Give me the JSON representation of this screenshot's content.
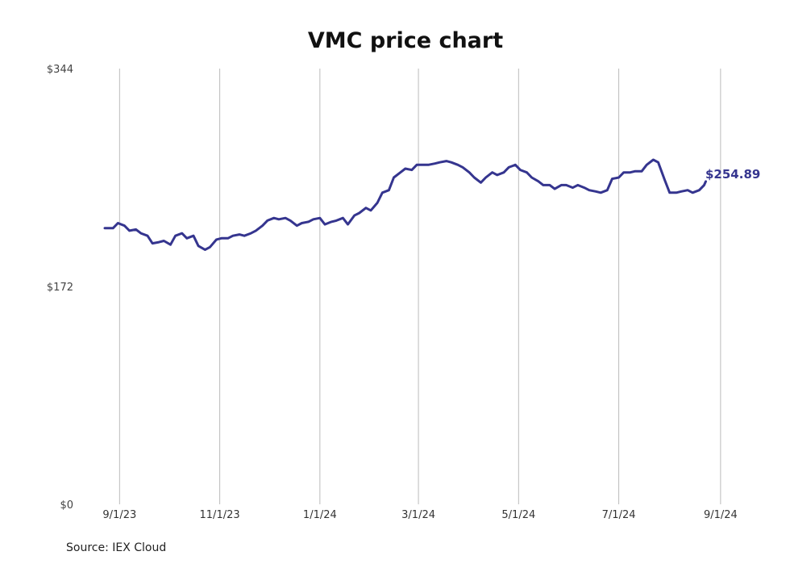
{
  "chart_data": {
    "type": "line",
    "title": "VMC price chart",
    "source": "Source: IEX Cloud",
    "xlabel": "",
    "ylabel": "",
    "grid": "vertical",
    "line_color": "#35358f",
    "ylim": [
      0,
      344
    ],
    "y_ticks": [
      {
        "value": 0,
        "label": "$0"
      },
      {
        "value": 172,
        "label": "$172"
      },
      {
        "value": 344,
        "label": "$344"
      }
    ],
    "x_ticks": [
      {
        "date": "2023-09-01",
        "label": "9/1/23"
      },
      {
        "date": "2023-11-01",
        "label": "11/1/23"
      },
      {
        "date": "2024-01-01",
        "label": "1/1/24"
      },
      {
        "date": "2024-03-01",
        "label": "3/1/24"
      },
      {
        "date": "2024-05-01",
        "label": "5/1/24"
      },
      {
        "date": "2024-07-01",
        "label": "7/1/24"
      },
      {
        "date": "2024-09-01",
        "label": "9/1/24"
      }
    ],
    "xlim": [
      "2023-08-23",
      "2024-09-10"
    ],
    "end_label": "$254.89",
    "series": [
      {
        "x": [
          "2023-08-23",
          "2023-08-28",
          "2023-08-31",
          "2023-09-04",
          "2023-09-07",
          "2023-09-11",
          "2023-09-14",
          "2023-09-18",
          "2023-09-21",
          "2023-09-25",
          "2023-09-28",
          "2023-10-02",
          "2023-10-05",
          "2023-10-09",
          "2023-10-12",
          "2023-10-16",
          "2023-10-19",
          "2023-10-23",
          "2023-10-26",
          "2023-10-30",
          "2023-11-02",
          "2023-11-06",
          "2023-11-09",
          "2023-11-13",
          "2023-11-16",
          "2023-11-20",
          "2023-11-23",
          "2023-11-27",
          "2023-11-30",
          "2023-12-04",
          "2023-12-07",
          "2023-12-11",
          "2023-12-14",
          "2023-12-18",
          "2023-12-21",
          "2023-12-25",
          "2023-12-28",
          "2024-01-01",
          "2024-01-04",
          "2024-01-08",
          "2024-01-11",
          "2024-01-15",
          "2024-01-18",
          "2024-01-22",
          "2024-01-25",
          "2024-01-29",
          "2024-02-01",
          "2024-02-05",
          "2024-02-08",
          "2024-02-12",
          "2024-02-15",
          "2024-02-19",
          "2024-02-22",
          "2024-02-26",
          "2024-02-29",
          "2024-03-04",
          "2024-03-07",
          "2024-03-11",
          "2024-03-14",
          "2024-03-18",
          "2024-03-21",
          "2024-03-25",
          "2024-03-28",
          "2024-04-01",
          "2024-04-04",
          "2024-04-08",
          "2024-04-11",
          "2024-04-15",
          "2024-04-18",
          "2024-04-22",
          "2024-04-25",
          "2024-04-29",
          "2024-05-02",
          "2024-05-06",
          "2024-05-09",
          "2024-05-13",
          "2024-05-16",
          "2024-05-20",
          "2024-05-23",
          "2024-05-27",
          "2024-05-30",
          "2024-06-03",
          "2024-06-06",
          "2024-06-10",
          "2024-06-13",
          "2024-06-17",
          "2024-06-20",
          "2024-06-24",
          "2024-06-27",
          "2024-07-01",
          "2024-07-04",
          "2024-07-08",
          "2024-07-11",
          "2024-07-15",
          "2024-07-18",
          "2024-07-22",
          "2024-07-25",
          "2024-07-29",
          "2024-08-01",
          "2024-08-05",
          "2024-08-08",
          "2024-08-12",
          "2024-08-15",
          "2024-08-19",
          "2024-08-22",
          "2024-08-23"
        ],
        "y": [
          218,
          218,
          222,
          220,
          216,
          217,
          214,
          212,
          206,
          207,
          208,
          205,
          212,
          214,
          210,
          212,
          204,
          201,
          203,
          209,
          210,
          210,
          212,
          213,
          212,
          214,
          216,
          220,
          224,
          226,
          225,
          226,
          224,
          220,
          222,
          223,
          225,
          226,
          221,
          223,
          224,
          226,
          221,
          228,
          230,
          234,
          232,
          238,
          246,
          248,
          258,
          262,
          265,
          264,
          268,
          268,
          268,
          269,
          270,
          271,
          270,
          268,
          266,
          262,
          258,
          254,
          258,
          262,
          260,
          262,
          266,
          268,
          264,
          262,
          258,
          255,
          252,
          252,
          249,
          252,
          252,
          250,
          252,
          250,
          248,
          247,
          246,
          248,
          257,
          258,
          262,
          262,
          263,
          263,
          268,
          272,
          270,
          256,
          246,
          246,
          247,
          248,
          246,
          248,
          252,
          254.89
        ]
      }
    ]
  }
}
